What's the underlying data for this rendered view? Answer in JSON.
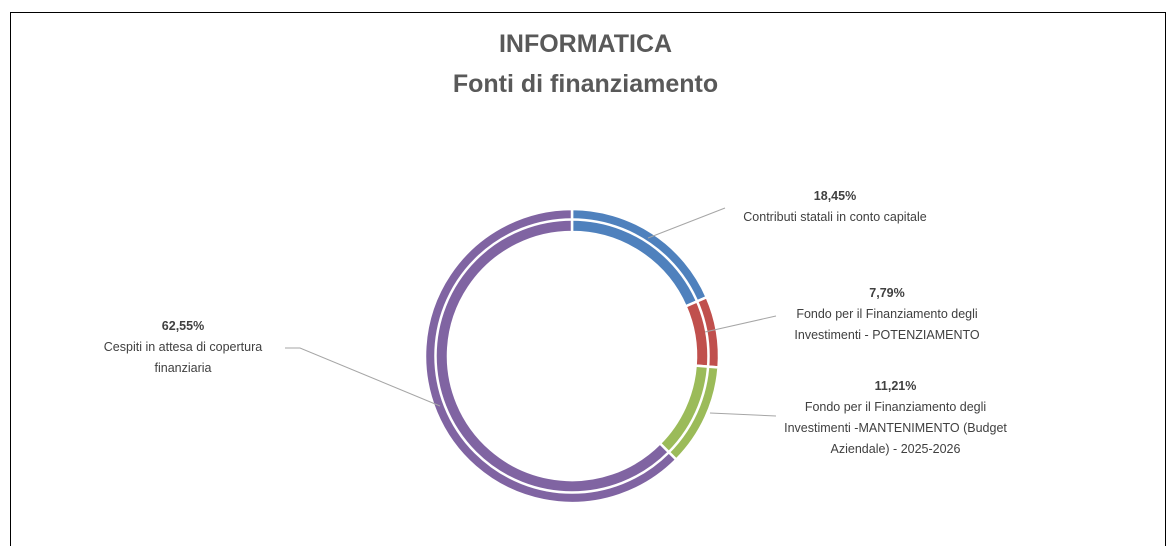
{
  "chart_data": {
    "type": "donut",
    "title": "INFORMATICA",
    "subtitle": "Fonti di finanziamento",
    "categories": [
      "Contributi statali in conto capitale",
      "Fondo per il Finanziamento degli Investimenti - POTENZIAMENTO",
      "Fondo per il Finanziamento degli Investimenti -MANTENIMENTO (Budget Aziendale) - 2025-2026",
      "Cespiti in attesa di copertura finanziaria"
    ],
    "values": [
      18.45,
      7.79,
      11.21,
      62.55
    ],
    "value_labels": [
      "18,45%",
      "7,79%",
      "11,21%",
      "62,55%"
    ],
    "colors": [
      "#4f81bd",
      "#c0504d",
      "#9bbb59",
      "#8064a2"
    ]
  }
}
